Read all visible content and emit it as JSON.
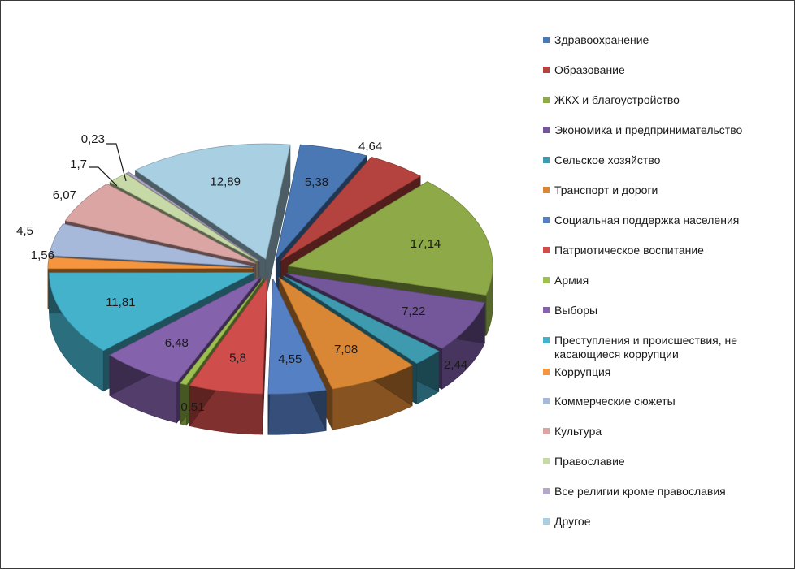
{
  "chart_data": {
    "type": "pie",
    "title": "",
    "legend_position": "right",
    "slices": [
      {
        "name": "Здравоохранение",
        "value": 5.38,
        "label": "5,38",
        "color": "#4a78b4"
      },
      {
        "name": "Образование",
        "value": 4.64,
        "label": "4,64",
        "color": "#b4433f"
      },
      {
        "name": "ЖКХ и благоустройство",
        "value": 17.14,
        "label": "17,14",
        "color": "#8eaa48"
      },
      {
        "name": "Экономика и предпринимательство",
        "value": 7.22,
        "label": "7,22",
        "color": "#74569a"
      },
      {
        "name": "Сельское хозяйство",
        "value": 2.44,
        "label": "2,44",
        "color": "#3d9aaf"
      },
      {
        "name": "Транспорт и дороги",
        "value": 7.08,
        "label": "7,08",
        "color": "#d98735"
      },
      {
        "name": "Социальная поддержка населения",
        "value": 4.55,
        "label": "4,55",
        "color": "#5680c4"
      },
      {
        "name": "Патриотическое воспитание",
        "value": 5.8,
        "label": "5,8",
        "color": "#cf4d4a"
      },
      {
        "name": "Армия",
        "value": 0.51,
        "label": "0,51",
        "color": "#9cc150"
      },
      {
        "name": "Выборы",
        "value": 6.48,
        "label": "6,48",
        "color": "#8462ac"
      },
      {
        "name": "Преступления и происшествия, не касающиеся коррупции",
        "value": 11.81,
        "label": "11,81",
        "color": "#45b2cc"
      },
      {
        "name": "Коррупция",
        "value": 1.56,
        "label": "1,56",
        "color": "#f5963e"
      },
      {
        "name": "Коммерческие сюжеты",
        "value": 4.5,
        "label": "4,5",
        "color": "#a7b9da"
      },
      {
        "name": "Культура",
        "value": 6.07,
        "label": "6,07",
        "color": "#dba5a4"
      },
      {
        "name": "Православие",
        "value": 1.7,
        "label": "1,7",
        "color": "#c8d9a8"
      },
      {
        "name": "Все религии кроме православия",
        "value": 0.23,
        "label": "0,23",
        "color": "#b3a8c8"
      },
      {
        "name": "Другое",
        "value": 12.89,
        "label": "12,89",
        "color": "#a8cfe2"
      }
    ]
  }
}
